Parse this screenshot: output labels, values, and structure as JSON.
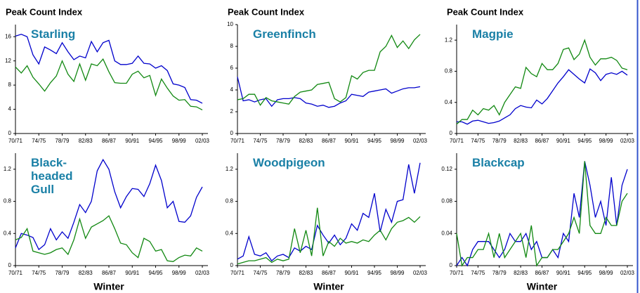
{
  "chart_data": [
    {
      "type": "line",
      "title": "Starling",
      "ylabel": "Peak Count Index",
      "categories": [
        "70/71",
        null,
        null,
        null,
        "74/75",
        null,
        null,
        null,
        "78/79",
        null,
        null,
        null,
        "82/83",
        null,
        null,
        null,
        "86/87",
        null,
        null,
        null,
        "90/91",
        null,
        null,
        null,
        "94/95",
        null,
        null,
        null,
        "98/99",
        null,
        null,
        null,
        "02/03"
      ],
      "series": [
        {
          "color": "#0000cc",
          "values": [
            16.1,
            16.4,
            16,
            13,
            11.5,
            14.3,
            13.8,
            13.2,
            15,
            13.5,
            12.2,
            12.8,
            12.5,
            15.2,
            13.5,
            15,
            15.4,
            12,
            11.4,
            11.4,
            11.6,
            12.8,
            11.6,
            11.5,
            10.8,
            11.2,
            10.4,
            8.2,
            8,
            7.6,
            5.6,
            5.5,
            5
          ]
        },
        {
          "color": "#118811",
          "values": [
            11,
            10,
            11.2,
            9.3,
            8.2,
            7,
            8.4,
            9.5,
            12,
            9.8,
            8.6,
            11.5,
            8.8,
            11.5,
            11.2,
            12.3,
            10.2,
            8.4,
            8.3,
            8.3,
            9.8,
            10.3,
            9.2,
            9.6,
            6.3,
            9,
            7.5,
            6.2,
            5.5,
            5.6,
            4.5,
            4.4,
            3.9
          ]
        }
      ],
      "ylim": [
        0,
        18
      ],
      "yticks": [
        0,
        4,
        8,
        12,
        16
      ]
    },
    {
      "type": "line",
      "title": "Greenfinch",
      "ylabel": "Peak Count Index",
      "categories": [
        "70/71",
        null,
        null,
        null,
        "74/75",
        null,
        null,
        null,
        "78/79",
        null,
        null,
        null,
        "82/83",
        null,
        null,
        null,
        "86/87",
        null,
        null,
        null,
        "90/91",
        null,
        null,
        null,
        "94/95",
        null,
        null,
        null,
        "98/99",
        null,
        null,
        null,
        "02/03"
      ],
      "series": [
        {
          "color": "#0000cc",
          "values": [
            5.2,
            3,
            3.1,
            2.9,
            3.1,
            3.2,
            2.5,
            3.1,
            3.2,
            3.2,
            3.3,
            3.2,
            2.8,
            2.7,
            2.5,
            2.6,
            2.4,
            2.5,
            2.8,
            3,
            3.6,
            3.5,
            3.4,
            3.8,
            3.9,
            4,
            4.1,
            3.7,
            3.9,
            4.1,
            4.2,
            4.2,
            4.3
          ]
        },
        {
          "color": "#118811",
          "values": [
            3.1,
            3.2,
            3.6,
            3.6,
            2.6,
            3.3,
            3,
            2.9,
            2.8,
            2.7,
            3.4,
            3.8,
            3.9,
            4,
            4.5,
            4.6,
            4.7,
            3.2,
            2.9,
            3.3,
            5.3,
            5,
            5.6,
            5.8,
            5.8,
            7.5,
            8,
            9,
            7.9,
            8.5,
            7.8,
            8.6,
            9.1
          ]
        }
      ],
      "ylim": [
        0,
        10
      ],
      "yticks": [
        0,
        2,
        4,
        6,
        8,
        10
      ]
    },
    {
      "type": "line",
      "title": "Magpie",
      "ylabel": "Peak Count Index",
      "categories": [
        "70/71",
        null,
        null,
        null,
        "74/75",
        null,
        null,
        null,
        "78/79",
        null,
        null,
        null,
        "82/83",
        null,
        null,
        null,
        "86/87",
        null,
        null,
        null,
        "90/91",
        null,
        null,
        null,
        "94/95",
        null,
        null,
        null,
        "98/99",
        null,
        null,
        null,
        "02/03"
      ],
      "series": [
        {
          "color": "#0000cc",
          "values": [
            0.15,
            0.15,
            0.12,
            0.16,
            0.17,
            0.15,
            0.13,
            0.14,
            0.16,
            0.2,
            0.24,
            0.32,
            0.36,
            0.34,
            0.33,
            0.43,
            0.38,
            0.45,
            0.55,
            0.65,
            0.73,
            0.82,
            0.76,
            0.7,
            0.65,
            0.83,
            0.78,
            0.68,
            0.76,
            0.78,
            0.76,
            0.8,
            0.75
          ]
        },
        {
          "color": "#118811",
          "values": [
            0.12,
            0.18,
            0.18,
            0.3,
            0.24,
            0.32,
            0.3,
            0.36,
            0.24,
            0.4,
            0.5,
            0.6,
            0.58,
            0.85,
            0.77,
            0.73,
            0.9,
            0.82,
            0.82,
            0.9,
            1.08,
            1.1,
            0.95,
            1.02,
            1.2,
            0.98,
            0.88,
            0.96,
            0.96,
            0.98,
            0.94,
            0.84,
            0.82
          ]
        }
      ],
      "ylim": [
        0,
        1.4
      ],
      "yticks": [
        0,
        0.4,
        0.8,
        1.2
      ]
    },
    {
      "type": "line",
      "title": "Black-headed Gull",
      "xlabel": "Winter",
      "categories": [
        "70/71",
        null,
        null,
        null,
        "74/75",
        null,
        null,
        null,
        "78/79",
        null,
        null,
        null,
        "82/83",
        null,
        null,
        null,
        "86/87",
        null,
        null,
        null,
        "90/91",
        null,
        null,
        null,
        "94/95",
        null,
        null,
        null,
        "98/99",
        null,
        null,
        null,
        "02/03"
      ],
      "series": [
        {
          "color": "#0000cc",
          "values": [
            0.22,
            0.4,
            0.38,
            0.35,
            0.2,
            0.26,
            0.46,
            0.32,
            0.42,
            0.34,
            0.54,
            0.76,
            0.66,
            0.8,
            1.18,
            1.32,
            1.2,
            0.92,
            0.72,
            0.86,
            0.96,
            0.95,
            0.86,
            1.02,
            1.25,
            1.06,
            0.72,
            0.8,
            0.55,
            0.54,
            0.62,
            0.85,
            0.98
          ]
        },
        {
          "color": "#118811",
          "values": [
            0.32,
            0.35,
            0.46,
            0.18,
            0.16,
            0.14,
            0.16,
            0.2,
            0.22,
            0.14,
            0.32,
            0.58,
            0.34,
            0.48,
            0.52,
            0.56,
            0.62,
            0.46,
            0.28,
            0.26,
            0.16,
            0.1,
            0.34,
            0.3,
            0.18,
            0.2,
            0.06,
            0.05,
            0.1,
            0.13,
            0.12,
            0.22,
            0.18
          ]
        }
      ],
      "ylim": [
        0,
        1.4
      ],
      "yticks": [
        0,
        0.4,
        0.8,
        1.2
      ]
    },
    {
      "type": "line",
      "title": "Woodpigeon",
      "xlabel": "Winter",
      "categories": [
        "70/71",
        null,
        null,
        null,
        "74/75",
        null,
        null,
        null,
        "78/79",
        null,
        null,
        null,
        "82/83",
        null,
        null,
        null,
        "86/87",
        null,
        null,
        null,
        "90/91",
        null,
        null,
        null,
        "94/95",
        null,
        null,
        null,
        "98/99",
        null,
        null,
        null,
        "02/03"
      ],
      "series": [
        {
          "color": "#0000cc",
          "values": [
            0.08,
            0.12,
            0.36,
            0.14,
            0.12,
            0.16,
            0.06,
            0.12,
            0.14,
            0.1,
            0.22,
            0.18,
            0.24,
            0.2,
            0.5,
            0.38,
            0.28,
            0.38,
            0.26,
            0.34,
            0.52,
            0.44,
            0.65,
            0.6,
            0.9,
            0.42,
            0.7,
            0.54,
            0.8,
            0.82,
            1.26,
            0.9,
            1.28
          ]
        },
        {
          "color": "#118811",
          "values": [
            0.02,
            0.04,
            0.06,
            0.06,
            0.08,
            0.1,
            0.04,
            0.08,
            0.06,
            0.08,
            0.46,
            0.16,
            0.44,
            0.12,
            0.72,
            0.12,
            0.3,
            0.24,
            0.34,
            0.28,
            0.3,
            0.28,
            0.32,
            0.3,
            0.38,
            0.44,
            0.32,
            0.46,
            0.54,
            0.56,
            0.6,
            0.54,
            0.61
          ]
        }
      ],
      "ylim": [
        0,
        1.4
      ],
      "yticks": [
        0,
        0.4,
        0.8,
        1.2
      ]
    },
    {
      "type": "line",
      "title": "Blackcap",
      "xlabel": "Winter",
      "categories": [
        "70/71",
        null,
        null,
        null,
        "74/75",
        null,
        null,
        null,
        "78/79",
        null,
        null,
        null,
        "82/83",
        null,
        null,
        null,
        "86/87",
        null,
        null,
        null,
        "90/91",
        null,
        null,
        null,
        "94/95",
        null,
        null,
        null,
        "98/99",
        null,
        null,
        null,
        "02/03"
      ],
      "series": [
        {
          "color": "#0000cc",
          "values": [
            0,
            0.01,
            0,
            0.02,
            0.03,
            0.03,
            0.03,
            0.02,
            0.01,
            0.02,
            0.04,
            0.03,
            0.03,
            0.04,
            0.02,
            0.03,
            0.01,
            0.01,
            0.02,
            0.01,
            0.04,
            0.03,
            0.09,
            0.06,
            0.13,
            0.1,
            0.06,
            0.08,
            0.05,
            0.11,
            0.05,
            0.1,
            0.12
          ]
        },
        {
          "color": "#118811",
          "values": [
            0.04,
            0,
            0.01,
            0.01,
            0.02,
            0.02,
            0.04,
            0.01,
            0.04,
            0.01,
            0.02,
            0.03,
            0.04,
            0.01,
            0.05,
            0,
            0.01,
            0.01,
            0.02,
            0.02,
            0.03,
            0.04,
            0.06,
            0.04,
            0.13,
            0.05,
            0.04,
            0.04,
            0.06,
            0.05,
            0.05,
            0.08,
            0.09
          ]
        }
      ],
      "ylim": [
        0,
        0.14
      ],
      "yticks": [
        0,
        0.04,
        0.08,
        0.12
      ]
    }
  ]
}
